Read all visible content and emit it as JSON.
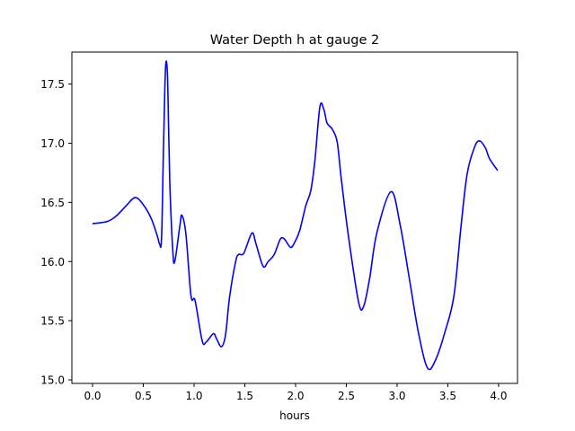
{
  "chart_data": {
    "type": "line",
    "title": "Water Depth h at gauge 2",
    "xlabel": "hours",
    "ylabel": "",
    "xlim": [
      -0.2035,
      4.186
    ],
    "ylim": [
      14.97,
      17.77
    ],
    "xticks": [
      0.0,
      0.5,
      1.0,
      1.5,
      2.0,
      2.5,
      3.0,
      3.5,
      4.0
    ],
    "xtick_labels": [
      "0.0",
      "0.5",
      "1.0",
      "1.5",
      "2.0",
      "2.5",
      "3.0",
      "3.5",
      "4.0"
    ],
    "yticks": [
      15.0,
      15.5,
      16.0,
      16.5,
      17.0,
      17.5
    ],
    "ytick_labels": [
      "15.0",
      "15.5",
      "16.0",
      "16.5",
      "17.0",
      "17.5"
    ],
    "grid": false,
    "series": [
      {
        "name": "h",
        "color": "#0000ff",
        "x": [
          0.0,
          0.15,
          0.24,
          0.33,
          0.42,
          0.5,
          0.58,
          0.64,
          0.66,
          0.68,
          0.7,
          0.72,
          0.74,
          0.76,
          0.79,
          0.81,
          0.86,
          0.88,
          0.92,
          0.97,
          1.01,
          1.08,
          1.12,
          1.19,
          1.22,
          1.27,
          1.31,
          1.35,
          1.41,
          1.44,
          1.49,
          1.57,
          1.61,
          1.68,
          1.73,
          1.79,
          1.85,
          1.89,
          1.95,
          1.99,
          2.04,
          2.1,
          2.15,
          2.19,
          2.24,
          2.28,
          2.31,
          2.36,
          2.41,
          2.45,
          2.52,
          2.62,
          2.67,
          2.73,
          2.8,
          2.94,
          3.03,
          3.12,
          3.21,
          3.3,
          3.38,
          3.47,
          3.56,
          3.63,
          3.69,
          3.76,
          3.81,
          3.87,
          3.91,
          3.99
        ],
        "y": [
          16.32,
          16.34,
          16.39,
          16.47,
          16.54,
          16.48,
          16.36,
          16.21,
          16.15,
          16.2,
          17.0,
          17.65,
          17.53,
          16.7,
          16.1,
          16.0,
          16.3,
          16.39,
          16.23,
          15.71,
          15.67,
          15.33,
          15.32,
          15.39,
          15.35,
          15.28,
          15.38,
          15.7,
          16.0,
          16.06,
          16.07,
          16.24,
          16.15,
          15.96,
          16.0,
          16.06,
          16.19,
          16.19,
          16.12,
          16.16,
          16.26,
          16.47,
          16.6,
          16.85,
          17.31,
          17.28,
          17.17,
          17.12,
          17.01,
          16.7,
          16.22,
          15.66,
          15.62,
          15.86,
          16.24,
          16.59,
          16.31,
          15.86,
          15.4,
          15.1,
          15.17,
          15.4,
          15.71,
          16.3,
          16.74,
          16.96,
          17.02,
          16.96,
          16.87,
          16.77
        ]
      }
    ]
  }
}
